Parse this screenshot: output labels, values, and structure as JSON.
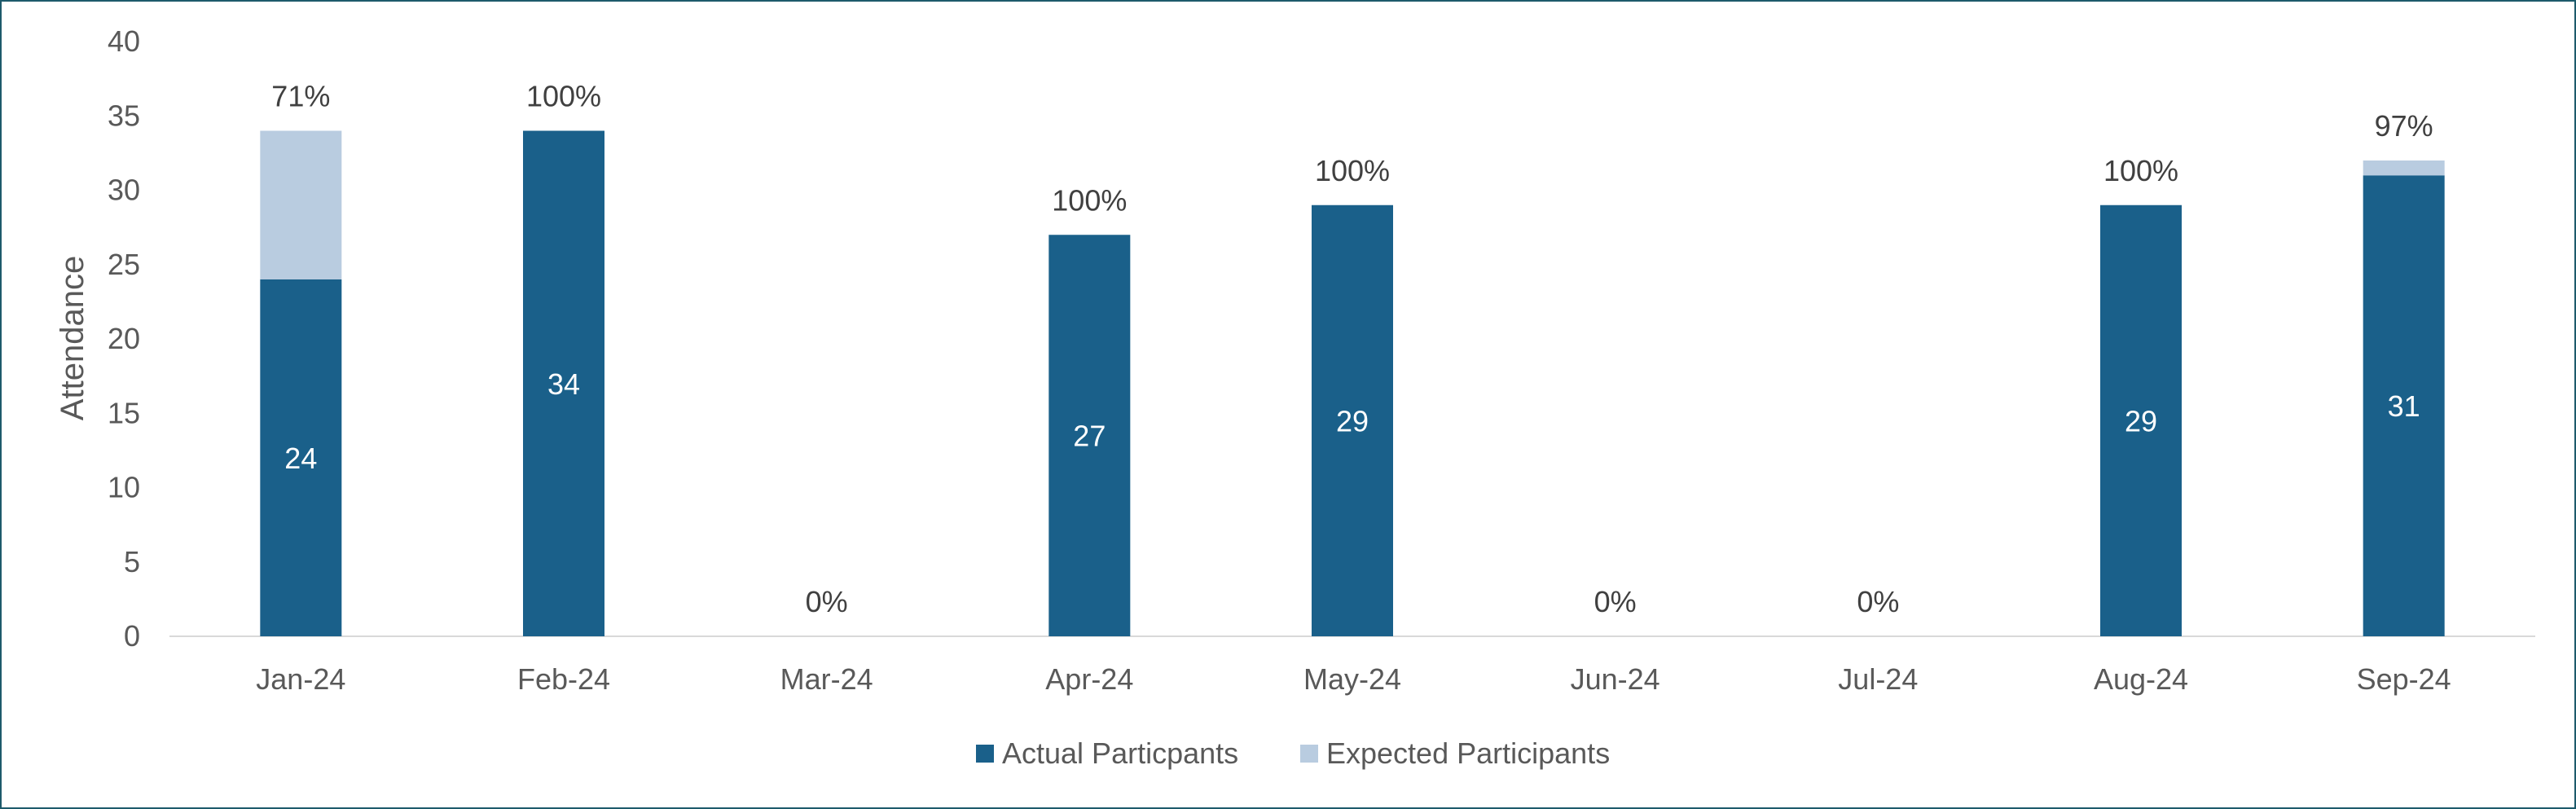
{
  "chart_data": {
    "type": "bar",
    "stacked": true,
    "title": "",
    "xlabel": "",
    "ylabel": "Attendance",
    "ylim": [
      0,
      40
    ],
    "y_ticks": [
      0,
      5,
      10,
      15,
      20,
      25,
      30,
      35,
      40
    ],
    "grid": false,
    "legend_position": "bottom",
    "categories": [
      "Jan-24",
      "Feb-24",
      "Mar-24",
      "Apr-24",
      "May-24",
      "Jun-24",
      "Jul-24",
      "Aug-24",
      "Sep-24"
    ],
    "series": [
      {
        "name": "Actual Particpants",
        "color": "#1a608a",
        "values": [
          24,
          34,
          0,
          27,
          29,
          0,
          0,
          29,
          31
        ],
        "data_labels": [
          "24",
          "34",
          "",
          "27",
          "29",
          "",
          "",
          "29",
          "31"
        ]
      },
      {
        "name": "Expected Participants",
        "color": "#b9cce0",
        "values": [
          10,
          0,
          0,
          0,
          0,
          0,
          0,
          0,
          1
        ]
      }
    ],
    "annotations": [
      "71%",
      "100%",
      "0%",
      "100%",
      "100%",
      "0%",
      "0%",
      "100%",
      "97%"
    ]
  }
}
